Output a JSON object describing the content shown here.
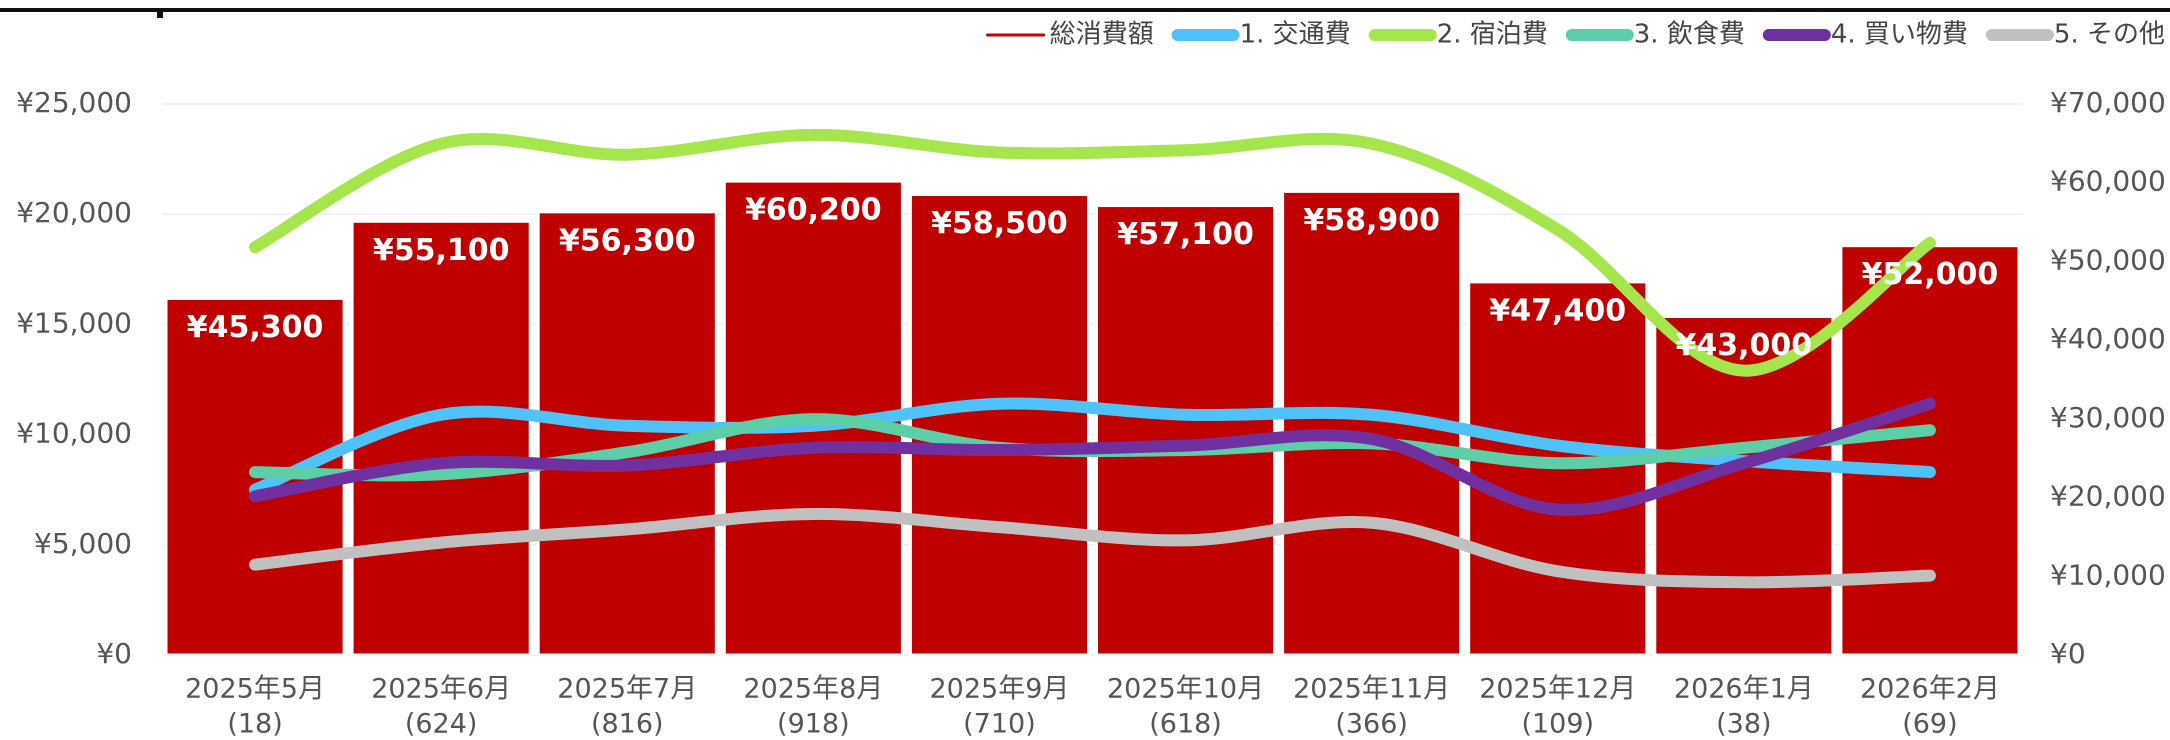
{
  "chart_data": {
    "type": "bar_line",
    "categories": [
      "2025年5月",
      "2025年6月",
      "2025年7月",
      "2025年8月",
      "2025年9月",
      "2025年10月",
      "2025年11月",
      "2025年12月",
      "2026年1月",
      "2026年2月"
    ],
    "category_counts": [
      "(18)",
      "(624)",
      "(816)",
      "(918)",
      "(710)",
      "(618)",
      "(366)",
      "(109)",
      "(38)",
      "(69)"
    ],
    "series": [
      {
        "name": "総消費額",
        "color": "#c00000",
        "axis": "y2",
        "kind": "bar",
        "values": [
          45300,
          55100,
          56300,
          60200,
          58500,
          57100,
          58900,
          47400,
          43000,
          52000
        ],
        "value_labels": [
          "¥45,300",
          "¥55,100",
          "¥56,300",
          "¥60,200",
          "¥58,500",
          "¥57,100",
          "¥58,900",
          "¥47,400",
          "¥43,000",
          "¥52,000"
        ]
      },
      {
        "name": "1. 交通費",
        "color": "#4fc3f7",
        "kind": "line",
        "values": [
          7500,
          10900,
          10400,
          10400,
          11400,
          10900,
          10900,
          9500,
          8800,
          8300
        ]
      },
      {
        "name": "2. 宿泊費",
        "color": "#a4e64c",
        "kind": "line",
        "values": [
          18500,
          23200,
          22700,
          23600,
          22800,
          22900,
          23200,
          19300,
          12900,
          18700
        ]
      },
      {
        "name": "3. 飲食費",
        "color": "#5ccfa8",
        "kind": "line",
        "values": [
          8300,
          8200,
          9200,
          10700,
          9400,
          9300,
          9600,
          8700,
          9400,
          10200
        ]
      },
      {
        "name": "4. 買い物費",
        "color": "#7030a0",
        "kind": "line",
        "values": [
          7200,
          8700,
          8600,
          9400,
          9300,
          9500,
          9800,
          6600,
          8700,
          11400
        ]
      },
      {
        "name": "5. その他",
        "color": "#c0c0c0",
        "kind": "line",
        "values": [
          4100,
          5100,
          5700,
          6400,
          5800,
          5200,
          6000,
          3800,
          3300,
          3600
        ]
      }
    ],
    "ylim": [
      0,
      25000
    ],
    "yticks": [
      {
        "value": 0,
        "label": "¥0"
      },
      {
        "value": 5000,
        "label": "¥5,000"
      },
      {
        "value": 10000,
        "label": "¥10,000"
      },
      {
        "value": 15000,
        "label": "¥15,000"
      },
      {
        "value": 20000,
        "label": "¥20,000"
      },
      {
        "value": 25000,
        "label": "¥25,000"
      }
    ],
    "y2lim": [
      0,
      70000
    ],
    "y2ticks": [
      {
        "value": 0,
        "label": "¥0"
      },
      {
        "value": 10000,
        "label": "¥10,000"
      },
      {
        "value": 20000,
        "label": "¥20,000"
      },
      {
        "value": 30000,
        "label": "¥30,000"
      },
      {
        "value": 40000,
        "label": "¥40,000"
      },
      {
        "value": 50000,
        "label": "¥50,000"
      },
      {
        "value": 60000,
        "label": "¥60,000"
      },
      {
        "value": 70000,
        "label": "¥70,000"
      }
    ],
    "grid": true,
    "legend": "top-right"
  }
}
